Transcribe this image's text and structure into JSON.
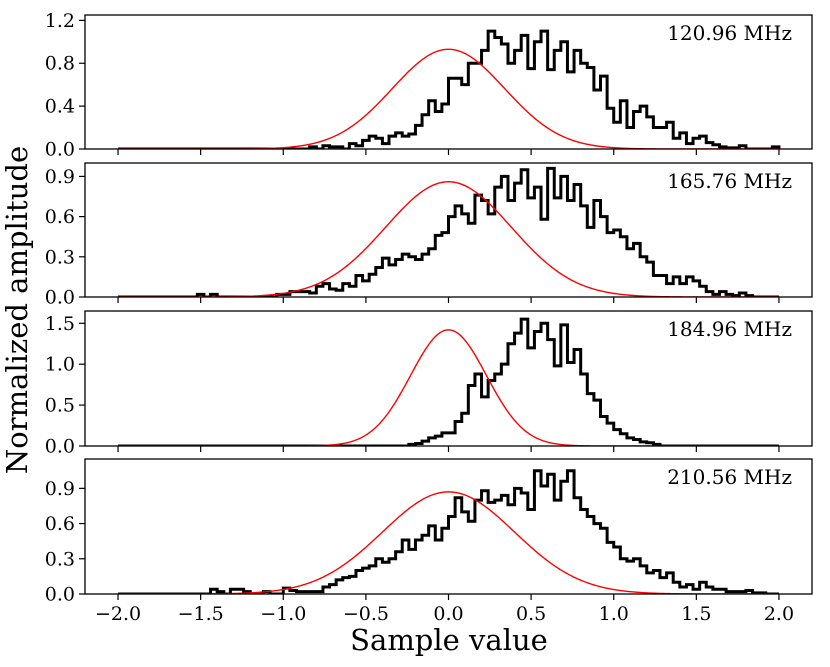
{
  "chart_data": {
    "type": "histogram",
    "xlabel": "Sample value",
    "ylabel": "Normalized amplitude",
    "xlim": [
      -2.2,
      2.2
    ],
    "xticks": [
      -2.0,
      -1.5,
      -1.0,
      -0.5,
      0.0,
      0.5,
      1.0,
      1.5,
      2.0
    ],
    "xtick_labels": [
      "−2.0",
      "−1.5",
      "−1.0",
      "−0.5",
      "0.0",
      "0.5",
      "1.0",
      "1.5",
      "2.0"
    ],
    "bin_edges": {
      "start": -2.0,
      "end": 2.0,
      "count": 100
    },
    "fit_color": "#ff0000",
    "hist_color": "#000000",
    "panels": [
      {
        "label": "120.96 MHz",
        "ylim": [
          0,
          1.25
        ],
        "yticks": [
          0.0,
          0.4,
          0.8,
          1.2
        ],
        "ytick_labels": [
          "0.0",
          "0.4",
          "0.8",
          "1.2"
        ],
        "fit": {
          "amplitude": 0.93,
          "mean": 0.0,
          "sigma": 0.34
        },
        "hist": [
          0,
          0,
          0,
          0,
          0,
          0,
          0,
          0,
          0,
          0,
          0,
          0,
          0,
          0,
          0,
          0,
          0,
          0,
          0,
          0,
          0,
          0,
          0,
          0,
          0,
          0,
          0,
          0,
          0,
          0.02,
          0,
          0.03,
          0.02,
          0.02,
          0,
          0.05,
          0.03,
          0.08,
          0.12,
          0.1,
          0.05,
          0.12,
          0.15,
          0.12,
          0.14,
          0.22,
          0.32,
          0.45,
          0.35,
          0.42,
          0.66,
          0.66,
          0.6,
          0.8,
          0.8,
          0.92,
          1.1,
          1.04,
          0.98,
          0.8,
          0.92,
          1.06,
          0.75,
          1.0,
          1.1,
          0.74,
          0.92,
          1.0,
          0.72,
          0.92,
          0.8,
          0.76,
          0.55,
          0.68,
          0.38,
          0.25,
          0.45,
          0.2,
          0.35,
          0.4,
          0.3,
          0.2,
          0.2,
          0.25,
          0.1,
          0.15,
          0.05,
          0.1,
          0.12,
          0.06,
          0.04,
          0.02,
          0.01,
          0.01,
          0.03,
          0,
          0,
          0,
          0,
          0.02
        ]
      },
      {
        "label": "165.76 MHz",
        "ylim": [
          0,
          1.0
        ],
        "yticks": [
          0.0,
          0.3,
          0.6,
          0.9
        ],
        "ytick_labels": [
          "0.0",
          "0.3",
          "0.6",
          "0.9"
        ],
        "fit": {
          "amplitude": 0.86,
          "mean": 0.0,
          "sigma": 0.38
        },
        "hist": [
          0,
          0,
          0,
          0,
          0,
          0,
          0,
          0,
          0,
          0,
          0,
          0,
          0.02,
          0,
          0.02,
          0,
          0,
          0,
          0,
          0,
          0,
          0,
          0,
          0,
          0.02,
          0.02,
          0.04,
          0.04,
          0.04,
          0.03,
          0.08,
          0.1,
          0.06,
          0.05,
          0.1,
          0.08,
          0.16,
          0.12,
          0.17,
          0.22,
          0.29,
          0.24,
          0.28,
          0.32,
          0.3,
          0.28,
          0.32,
          0.36,
          0.46,
          0.48,
          0.6,
          0.68,
          0.62,
          0.55,
          0.76,
          0.72,
          0.62,
          0.82,
          0.9,
          0.72,
          0.85,
          0.95,
          0.74,
          0.82,
          0.58,
          0.96,
          0.74,
          0.9,
          0.72,
          0.84,
          0.68,
          0.52,
          0.72,
          0.6,
          0.48,
          0.5,
          0.45,
          0.36,
          0.4,
          0.3,
          0.26,
          0.16,
          0.16,
          0.1,
          0.15,
          0.1,
          0.15,
          0.12,
          0.08,
          0.04,
          0.02,
          0.04,
          0.02,
          0.01,
          0.03,
          0.01,
          0,
          0,
          0,
          0
        ]
      },
      {
        "label": "184.96 MHz",
        "ylim": [
          0,
          1.65
        ],
        "yticks": [
          0.0,
          0.5,
          1.0,
          1.5
        ],
        "ytick_labels": [
          "0.0",
          "0.5",
          "1.0",
          "1.5"
        ],
        "fit": {
          "amplitude": 1.42,
          "mean": 0.0,
          "sigma": 0.23
        },
        "hist": [
          0,
          0,
          0,
          0,
          0,
          0,
          0,
          0,
          0,
          0,
          0,
          0,
          0,
          0,
          0,
          0,
          0,
          0,
          0,
          0,
          0,
          0,
          0,
          0,
          0,
          0,
          0,
          0,
          0,
          0,
          0,
          0,
          0,
          0,
          0,
          0,
          0,
          0,
          0,
          0,
          0,
          0,
          0,
          0,
          0.02,
          0.03,
          0.06,
          0.1,
          0.12,
          0.16,
          0.16,
          0.3,
          0.4,
          0.74,
          0.88,
          0.6,
          0.8,
          0.88,
          1.0,
          1.25,
          1.38,
          1.55,
          1.2,
          1.4,
          1.5,
          1.3,
          0.98,
          1.48,
          1.02,
          1.18,
          0.88,
          0.64,
          0.56,
          0.36,
          0.28,
          0.2,
          0.15,
          0.1,
          0.08,
          0.05,
          0.04,
          0.02,
          0,
          0,
          0,
          0,
          0,
          0,
          0,
          0,
          0,
          0,
          0,
          0,
          0,
          0,
          0,
          0,
          0,
          0
        ]
      },
      {
        "label": "210.56 MHz",
        "ylim": [
          0,
          1.15
        ],
        "yticks": [
          0.0,
          0.3,
          0.6,
          0.9
        ],
        "ytick_labels": [
          "0.0",
          "0.3",
          "0.6",
          "0.9"
        ],
        "fit": {
          "amplitude": 0.87,
          "mean": 0.0,
          "sigma": 0.4
        },
        "hist": [
          0,
          0,
          0,
          0,
          0,
          0,
          0,
          0,
          0,
          0,
          0,
          0,
          0,
          0,
          0.04,
          0.02,
          0,
          0.04,
          0.04,
          0.02,
          0,
          0,
          0.02,
          0,
          0,
          0.05,
          0.03,
          0.02,
          0.02,
          0.02,
          0.02,
          0.06,
          0.08,
          0.12,
          0.14,
          0.15,
          0.2,
          0.22,
          0.24,
          0.3,
          0.27,
          0.3,
          0.36,
          0.46,
          0.38,
          0.46,
          0.5,
          0.58,
          0.46,
          0.56,
          0.66,
          0.82,
          0.7,
          0.62,
          0.8,
          0.88,
          0.78,
          0.8,
          0.84,
          0.76,
          0.9,
          0.86,
          0.72,
          1.05,
          0.92,
          1.02,
          0.8,
          0.96,
          1.05,
          0.82,
          0.72,
          0.66,
          0.6,
          0.56,
          0.44,
          0.4,
          0.3,
          0.28,
          0.3,
          0.24,
          0.18,
          0.2,
          0.14,
          0.18,
          0.1,
          0.06,
          0.08,
          0.04,
          0.1,
          0.06,
          0.04,
          0.04,
          0.02,
          0.02,
          0.02,
          0.03,
          0.01,
          0.01,
          0,
          0
        ]
      }
    ]
  }
}
